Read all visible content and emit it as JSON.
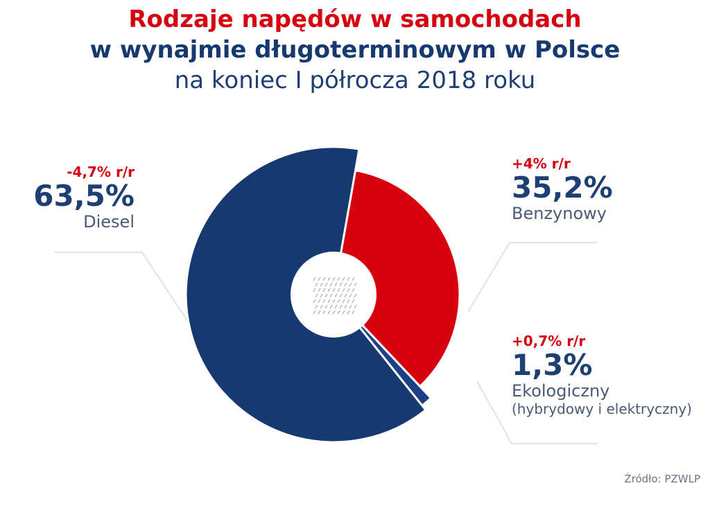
{
  "title": {
    "line1": "Rodzaje napędów w samochodach",
    "line2": "w wynajmie długoterminowym w Polsce",
    "line3": "na koniec I półrocza 2018 roku"
  },
  "chart_data": {
    "type": "pie",
    "title": "Rodzaje napędów w samochodach w wynajmie długoterminowym w Polsce na koniec I półrocza 2018 roku",
    "slices": [
      {
        "name": "Benzynowy",
        "value": 35.2,
        "value_label": "35,2%",
        "change": "+4% r/r",
        "color": "#d7000f"
      },
      {
        "name": "Ekologiczny",
        "subname": "(hybrydowy i elektryczny)",
        "value": 1.3,
        "value_label": "1,3%",
        "change": "+0,7% r/r",
        "color": "#1d3f85"
      },
      {
        "name": "Diesel",
        "value": 63.5,
        "value_label": "63,5%",
        "change": "-4,7% r/r",
        "color": "#163a70"
      }
    ]
  },
  "source": "Źródło: PZWLP"
}
